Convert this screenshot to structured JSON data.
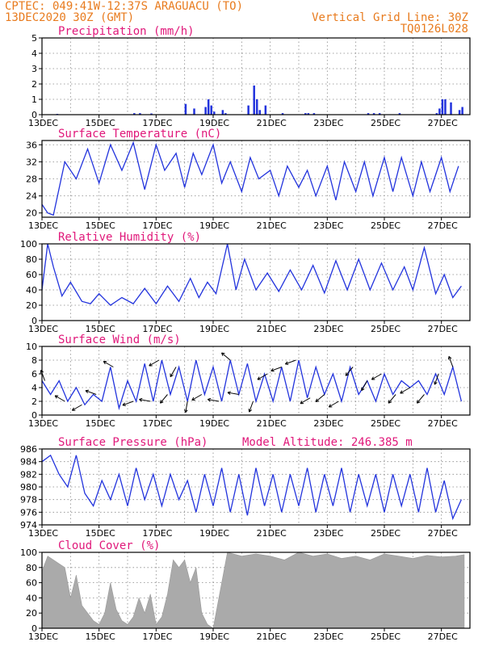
{
  "header": {
    "line1": "CPTEC:   049:41W-12:37S  ARAGUACU (TO)",
    "line2": "13DEC2020 30Z (GMT)",
    "grid_note": "Vertical Grid Line: 30Z",
    "code": "TQ0126L028"
  },
  "colors": {
    "header": "#e87b1e",
    "title": "#e0187a",
    "line": "#2233dd",
    "bar": "#2233dd",
    "cloud": "#aaaaaa"
  },
  "chart_data": [
    {
      "type": "bar",
      "key": "precip",
      "title": "Precipitation (mm/h)",
      "ylim": [
        0,
        5
      ],
      "yticks": [
        0,
        1,
        2,
        3,
        4,
        5
      ],
      "xticks": [
        "13DEC",
        "15DEC",
        "17DEC",
        "19DEC",
        "21DEC",
        "23DEC",
        "25DEC",
        "27DEC"
      ],
      "x": [
        0.5,
        3.2,
        3.4,
        3.8,
        5.0,
        5.3,
        5.7,
        5.8,
        5.9,
        6.0,
        6.3,
        6.4,
        7.2,
        7.4,
        7.5,
        7.6,
        7.8,
        8.4,
        9.2,
        9.3,
        9.5,
        11.4,
        11.6,
        11.8,
        12.5,
        13.8,
        13.9,
        14.0,
        14.1,
        14.3,
        14.6,
        14.7
      ],
      "values": [
        0.05,
        0.1,
        0.1,
        0.08,
        0.7,
        0.4,
        0.5,
        1.0,
        0.6,
        0.2,
        0.3,
        0.1,
        0.6,
        1.9,
        1.0,
        0.3,
        0.6,
        0.1,
        0.1,
        0.1,
        0.1,
        0.1,
        0.1,
        0.1,
        0.1,
        0.1,
        0.4,
        1.0,
        1.0,
        0.8,
        0.3,
        0.5
      ],
      "grid": true
    },
    {
      "type": "line",
      "key": "temp",
      "title": "Surface Temperature (nC)",
      "ylim": [
        19,
        37
      ],
      "yticks": [
        20,
        24,
        28,
        32,
        36
      ],
      "xticks": [
        "13DEC",
        "15DEC",
        "17DEC",
        "19DEC",
        "21DEC",
        "23DEC",
        "25DEC",
        "27DEC"
      ],
      "x": [
        0,
        0.2,
        0.4,
        0.8,
        1.2,
        1.6,
        2.0,
        2.4,
        2.8,
        3.2,
        3.6,
        4.0,
        4.3,
        4.7,
        5.0,
        5.3,
        5.6,
        6.0,
        6.3,
        6.6,
        7.0,
        7.3,
        7.6,
        8.0,
        8.3,
        8.6,
        9.0,
        9.3,
        9.6,
        10.0,
        10.3,
        10.6,
        11.0,
        11.3,
        11.6,
        12.0,
        12.3,
        12.6,
        13.0,
        13.3,
        13.6,
        14.0,
        14.3,
        14.6
      ],
      "values": [
        22,
        20,
        19.5,
        32,
        28,
        35,
        27,
        36,
        30,
        36.5,
        25.5,
        36,
        30,
        34,
        26,
        34,
        29,
        36,
        27,
        32,
        25,
        33,
        28,
        30,
        24,
        31,
        26,
        30,
        24,
        31,
        23,
        32,
        25,
        32,
        24,
        33,
        25,
        33,
        24,
        32,
        25,
        33,
        25,
        31
      ],
      "grid": true
    },
    {
      "type": "line",
      "key": "rh",
      "title": "Relative Humidity (%)",
      "ylim": [
        0,
        100
      ],
      "yticks": [
        0,
        20,
        40,
        60,
        80,
        100
      ],
      "xticks": [
        "13DEC",
        "15DEC",
        "17DEC",
        "19DEC",
        "21DEC",
        "23DEC",
        "25DEC",
        "27DEC"
      ],
      "x": [
        0,
        0.2,
        0.4,
        0.7,
        1.0,
        1.4,
        1.7,
        2.0,
        2.4,
        2.8,
        3.2,
        3.6,
        4.0,
        4.4,
        4.8,
        5.2,
        5.5,
        5.8,
        6.1,
        6.5,
        6.8,
        7.1,
        7.5,
        7.9,
        8.3,
        8.7,
        9.1,
        9.5,
        9.9,
        10.3,
        10.7,
        11.1,
        11.5,
        11.9,
        12.3,
        12.7,
        13.0,
        13.4,
        13.8,
        14.1,
        14.4,
        14.7
      ],
      "values": [
        40,
        100,
        70,
        32,
        50,
        25,
        22,
        35,
        20,
        30,
        22,
        42,
        22,
        45,
        25,
        55,
        30,
        50,
        35,
        100,
        40,
        80,
        40,
        62,
        38,
        66,
        40,
        72,
        36,
        78,
        40,
        80,
        40,
        75,
        40,
        70,
        40,
        95,
        35,
        60,
        30,
        45
      ],
      "grid": true
    },
    {
      "type": "line",
      "key": "wind",
      "title": "Surface Wind (m/s)",
      "ylim": [
        0,
        10
      ],
      "yticks": [
        0,
        2,
        4,
        6,
        8,
        10
      ],
      "xticks": [
        "13DEC",
        "15DEC",
        "17DEC",
        "19DEC",
        "21DEC",
        "23DEC",
        "25DEC",
        "27DEC"
      ],
      "x": [
        0,
        0.3,
        0.6,
        0.9,
        1.2,
        1.5,
        1.8,
        2.1,
        2.4,
        2.7,
        3.0,
        3.3,
        3.6,
        3.9,
        4.2,
        4.5,
        4.8,
        5.1,
        5.4,
        5.7,
        6.0,
        6.3,
        6.6,
        6.9,
        7.2,
        7.5,
        7.8,
        8.1,
        8.4,
        8.7,
        9.0,
        9.3,
        9.6,
        9.9,
        10.2,
        10.5,
        10.8,
        11.1,
        11.4,
        11.7,
        12.0,
        12.3,
        12.6,
        12.9,
        13.2,
        13.5,
        13.8,
        14.1,
        14.4,
        14.7
      ],
      "values": [
        5,
        3,
        5,
        2,
        4,
        1.5,
        3,
        2,
        7,
        1,
        5,
        2,
        7.5,
        2,
        8,
        3,
        7,
        2,
        8,
        3,
        7,
        2,
        8,
        3,
        7.5,
        2,
        6,
        2,
        7,
        2,
        8,
        2.5,
        7,
        3,
        6,
        2,
        7,
        3,
        5,
        2,
        6,
        3,
        5,
        4,
        5,
        3,
        6,
        3,
        7,
        2
      ],
      "arrows": [
        [
          0.1,
          200
        ],
        [
          0.8,
          240
        ],
        [
          1.4,
          300
        ],
        [
          1.9,
          250
        ],
        [
          2.5,
          240
        ],
        [
          3.2,
          290
        ],
        [
          3.8,
          260
        ],
        [
          4.1,
          300
        ],
        [
          4.4,
          320
        ],
        [
          4.7,
          330
        ],
        [
          5.1,
          350
        ],
        [
          5.6,
          300
        ],
        [
          6.2,
          260
        ],
        [
          6.6,
          230
        ],
        [
          6.9,
          260
        ],
        [
          7.4,
          340
        ],
        [
          7.9,
          300
        ],
        [
          8.4,
          290
        ],
        [
          8.9,
          290
        ],
        [
          9.4,
          300
        ],
        [
          9.9,
          310
        ],
        [
          10.4,
          300
        ],
        [
          10.9,
          320
        ],
        [
          11.4,
          330
        ],
        [
          11.9,
          300
        ],
        [
          12.4,
          320
        ],
        [
          12.9,
          300
        ],
        [
          13.4,
          320
        ],
        [
          13.9,
          340
        ],
        [
          14.4,
          200
        ]
      ],
      "grid": true
    },
    {
      "type": "line",
      "key": "press",
      "title": "Surface Pressure (hPa)",
      "annotation": "Model Altitude: 246.385 m",
      "ylim": [
        974,
        986
      ],
      "yticks": [
        974,
        976,
        978,
        980,
        982,
        984,
        986
      ],
      "xticks": [
        "13DEC",
        "15DEC",
        "17DEC",
        "19DEC",
        "21DEC",
        "23DEC",
        "25DEC",
        "27DEC"
      ],
      "x": [
        0,
        0.3,
        0.6,
        0.9,
        1.2,
        1.5,
        1.8,
        2.1,
        2.4,
        2.7,
        3.0,
        3.3,
        3.6,
        3.9,
        4.2,
        4.5,
        4.8,
        5.1,
        5.4,
        5.7,
        6.0,
        6.3,
        6.6,
        6.9,
        7.2,
        7.5,
        7.8,
        8.1,
        8.4,
        8.7,
        9.0,
        9.3,
        9.6,
        9.9,
        10.2,
        10.5,
        10.8,
        11.1,
        11.4,
        11.7,
        12.0,
        12.3,
        12.6,
        12.9,
        13.2,
        13.5,
        13.8,
        14.1,
        14.4,
        14.7
      ],
      "values": [
        984,
        985,
        982,
        980,
        985,
        979,
        977,
        981,
        978,
        982,
        977,
        983,
        978,
        982,
        977,
        982,
        978,
        981,
        976,
        982,
        977,
        983,
        976,
        982,
        975.5,
        983,
        977,
        982,
        976,
        982,
        977,
        983,
        976,
        982,
        977,
        983,
        976,
        982,
        977,
        982,
        976,
        982,
        977,
        982,
        976,
        983,
        976,
        981,
        975,
        978
      ],
      "grid": true
    },
    {
      "type": "area",
      "key": "cloud",
      "title": "Cloud Cover (%)",
      "ylim": [
        0,
        100
      ],
      "yticks": [
        0,
        20,
        40,
        60,
        80,
        100
      ],
      "xticks": [
        "13DEC",
        "15DEC",
        "17DEC",
        "19DEC",
        "21DEC",
        "23DEC",
        "25DEC",
        "27DEC"
      ],
      "x": [
        0,
        0.2,
        0.4,
        0.6,
        0.8,
        1.0,
        1.2,
        1.4,
        1.6,
        1.8,
        2.0,
        2.2,
        2.4,
        2.6,
        2.8,
        3.0,
        3.2,
        3.4,
        3.6,
        3.8,
        4.0,
        4.2,
        4.4,
        4.6,
        4.8,
        5.0,
        5.2,
        5.4,
        5.6,
        5.8,
        6.0,
        6.5,
        7.0,
        7.5,
        8.0,
        8.5,
        9.0,
        9.5,
        10.0,
        10.5,
        11.0,
        11.5,
        12.0,
        12.5,
        13.0,
        13.5,
        14.0,
        14.5,
        14.8
      ],
      "values": [
        75,
        95,
        90,
        85,
        80,
        40,
        70,
        30,
        20,
        10,
        5,
        20,
        60,
        25,
        10,
        5,
        15,
        40,
        20,
        45,
        5,
        15,
        45,
        90,
        80,
        90,
        60,
        80,
        20,
        5,
        0,
        100,
        95,
        98,
        95,
        90,
        100,
        95,
        98,
        92,
        95,
        90,
        98,
        95,
        92,
        96,
        94,
        95,
        97
      ],
      "grid": true
    }
  ]
}
